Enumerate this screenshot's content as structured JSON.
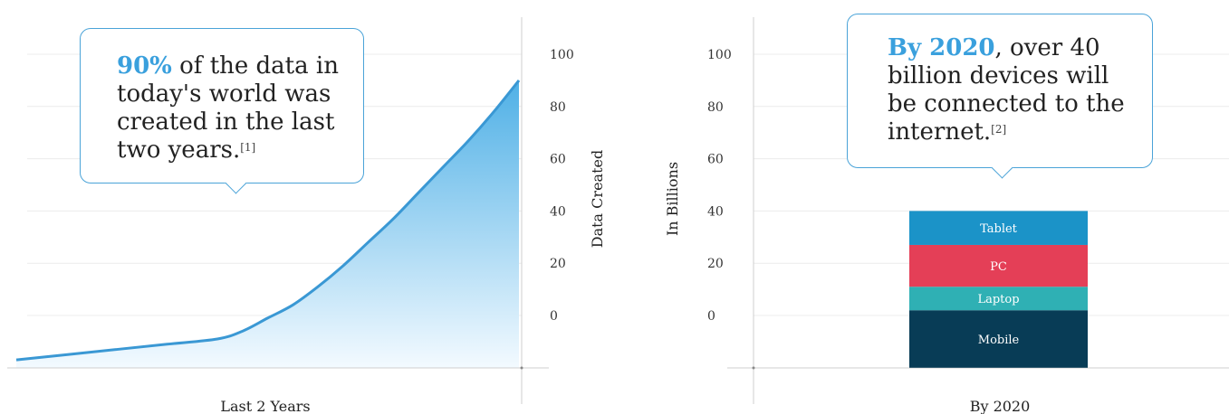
{
  "chart_data": [
    {
      "type": "area",
      "xlabel": "Last 2 Years",
      "ylabel": "Data Created",
      "yticks": [
        0,
        20,
        40,
        60,
        80,
        100
      ],
      "ylim": [
        -20,
        110
      ],
      "grid": true,
      "x": [
        0,
        0.1,
        0.2,
        0.3,
        0.4,
        0.45,
        0.5,
        0.55,
        0.6,
        0.65,
        0.7,
        0.75,
        0.8,
        0.85,
        0.9,
        0.95,
        1.0
      ],
      "y": [
        -17,
        -15,
        -13,
        -11,
        -9,
        -6,
        -1,
        4,
        11,
        19,
        28,
        37,
        47,
        57,
        67,
        78,
        90
      ],
      "colors": {
        "line": "#3a98d4",
        "fill_top": "#4fb0e6",
        "fill_bottom": "#f3faff"
      },
      "callout": {
        "highlight": "90%",
        "text": " of the data in today's world was created in the last two years.",
        "ref": "[1]"
      }
    },
    {
      "type": "bar",
      "stacked": true,
      "xlabel": "By 2020",
      "ylabel": "In Billions",
      "yticks": [
        0,
        20,
        40,
        60,
        80,
        100
      ],
      "ylim": [
        -20,
        110
      ],
      "grid": true,
      "categories": [
        "By 2020"
      ],
      "segments": [
        {
          "label": "Mobile",
          "value": 22,
          "color": "#083c56"
        },
        {
          "label": "Laptop",
          "value": 9,
          "color": "#2fb0b4"
        },
        {
          "label": "PC",
          "value": 16,
          "color": "#e43f57"
        },
        {
          "label": "Tablet",
          "value": 13,
          "color": "#1b93c8"
        }
      ],
      "callout": {
        "highlight": "By 2020",
        "text": ", over 40 billion devices will be connected to the internet.",
        "ref": "[2]"
      }
    }
  ]
}
